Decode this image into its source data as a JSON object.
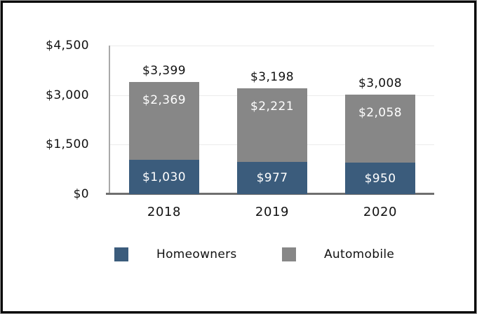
{
  "chart_data": {
    "type": "bar",
    "stacked": true,
    "title": "",
    "categories": [
      "2018",
      "2019",
      "2020"
    ],
    "series": [
      {
        "name": "Homeowners",
        "color": "#3B5C7C",
        "values": [
          1030,
          977,
          950
        ],
        "value_labels": [
          "$1,030",
          "$977",
          "$950"
        ]
      },
      {
        "name": "Automobile",
        "color": "#878787",
        "values": [
          2369,
          2221,
          2058
        ],
        "value_labels": [
          "$2,369",
          "$2,221",
          "$2,058"
        ]
      }
    ],
    "totals": [
      3399,
      3198,
      3008
    ],
    "total_labels": [
      "$3,399",
      "$3,198",
      "$3,008"
    ],
    "y_axis": {
      "min": 0,
      "max": 4500,
      "ticks": [
        {
          "value": 4500,
          "label": "$4,500"
        },
        {
          "value": 3000,
          "label": "$3,000"
        },
        {
          "value": 1500,
          "label": "$1,500"
        },
        {
          "value": 0,
          "label": "$0"
        }
      ]
    },
    "grid": true,
    "legend": {
      "position": "bottom",
      "entries": [
        {
          "label": "Homeowners",
          "color": "#3B5C7C"
        },
        {
          "label": "Automobile",
          "color": "#878787"
        }
      ]
    }
  },
  "colors": {
    "bar_blue": "#3B5C7C",
    "bar_gray": "#878787",
    "gridline": "#ebebeb",
    "axis_line": "#a9a9a9",
    "baseline": "#6f6f6f",
    "text": "#111111",
    "in_bar_text": "#ffffff",
    "frame_border": "#000000"
  }
}
